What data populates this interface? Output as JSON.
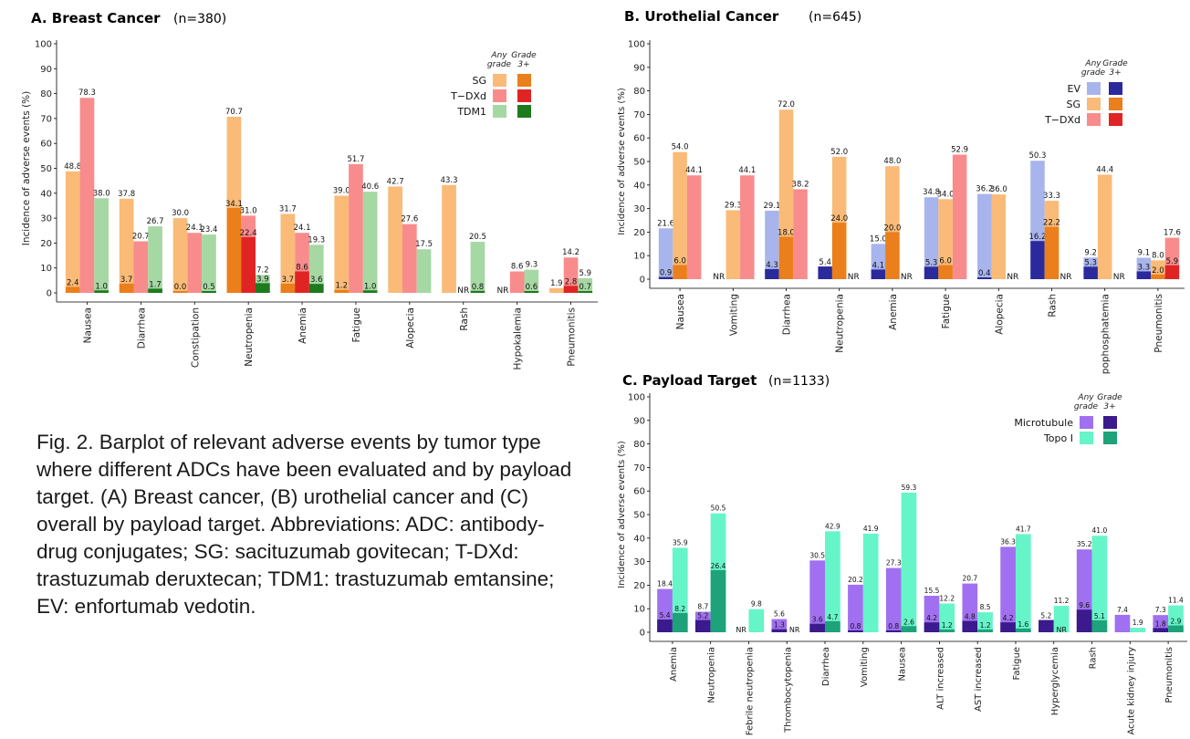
{
  "caption": "Fig. 2. Barplot of relevant adverse events by tumor type where different ADCs have been evaluated and by payload target. (A) Breast cancer, (B) urothelial cancer and (C) overall by payload target. Abbreviations: ADC: antibody-drug conjugates; SG: sacituzumab govitecan; T-DXd: trastuzumab deruxtecan; TDM1: trastuzumab emtansine; EV: enfortumab vedotin.",
  "legend_headers": {
    "any": [
      "Any",
      "grade"
    ],
    "g3": [
      "Grade",
      "3+"
    ]
  },
  "na_label": "NR",
  "chart_data": [
    {
      "type": "bar",
      "title": "A. Breast Cancer",
      "subtitle": "(n=380)",
      "ylabel": "Incidence of adverse events (%)",
      "ylim": [
        0,
        100
      ],
      "yticks": [
        0,
        10,
        20,
        30,
        40,
        50,
        60,
        70,
        80,
        90,
        100
      ],
      "categories": [
        "Nausea",
        "Diarrhea",
        "Constipation",
        "Neutropenia",
        "Anemia",
        "Fatigue",
        "Alopecia",
        "Rash",
        "Hypokalemia",
        "Pneumonitis"
      ],
      "series": [
        {
          "name": "SG",
          "any_color": "#f9bb77",
          "g3_color": "#ea7f1b",
          "any": [
            48.8,
            37.8,
            30.0,
            70.7,
            31.7,
            39.0,
            42.7,
            43.3,
            null,
            1.9
          ],
          "g3": [
            2.4,
            3.7,
            0.0,
            34.1,
            3.7,
            1.2,
            null,
            null,
            null,
            null
          ]
        },
        {
          "name": "T−DXd",
          "any_color": "#f88c8c",
          "g3_color": "#e02424",
          "any": [
            78.3,
            20.7,
            24.1,
            31.0,
            24.1,
            51.7,
            27.6,
            null,
            8.6,
            14.2
          ],
          "g3": [
            null,
            null,
            null,
            22.4,
            8.6,
            null,
            null,
            null,
            null,
            2.8
          ]
        },
        {
          "name": "TDM1",
          "any_color": "#a6d8a4",
          "g3_color": "#1d7a1d",
          "any": [
            38.0,
            26.7,
            23.4,
            7.2,
            19.3,
            40.6,
            17.5,
            20.5,
            9.3,
            5.9
          ],
          "g3": [
            1.0,
            1.7,
            0.5,
            3.9,
            3.6,
            1.0,
            null,
            0.8,
            0.6,
            0.7
          ]
        }
      ],
      "nr": [
        [
          7,
          1
        ],
        [
          8,
          0
        ]
      ]
    },
    {
      "type": "bar",
      "title": "B. Urothelial Cancer",
      "subtitle": "(n=645)",
      "ylabel": "Incidence of adverse events (%)",
      "ylim": [
        0,
        100
      ],
      "yticks": [
        0,
        10,
        20,
        30,
        40,
        50,
        60,
        70,
        80,
        90,
        100
      ],
      "categories": [
        "Nausea",
        "Vomiting",
        "Diarrhea",
        "Neutropenia",
        "Anemia",
        "Fatigue",
        "Alopecia",
        "Rash",
        "Hypophosphatemia",
        "Pneumonitis"
      ],
      "series": [
        {
          "name": "EV",
          "any_color": "#a8b4ec",
          "g3_color": "#2a2a9c",
          "any": [
            21.6,
            null,
            29.1,
            null,
            15.0,
            34.8,
            36.2,
            50.3,
            9.2,
            9.1
          ],
          "g3": [
            0.9,
            null,
            4.3,
            5.4,
            4.1,
            5.3,
            0.4,
            16.2,
            5.3,
            3.3
          ]
        },
        {
          "name": "SG",
          "any_color": "#f9bb77",
          "g3_color": "#ea7f1b",
          "any": [
            54.0,
            29.3,
            72.0,
            52.0,
            48.0,
            34.0,
            36.0,
            33.3,
            44.4,
            8.0
          ],
          "g3": [
            6.0,
            null,
            18.0,
            24.0,
            20.0,
            6.0,
            null,
            22.2,
            null,
            2.0
          ]
        },
        {
          "name": "T−DXd",
          "any_color": "#f88c8c",
          "g3_color": "#e02424",
          "any": [
            44.1,
            44.1,
            38.2,
            null,
            null,
            52.9,
            null,
            null,
            null,
            17.6
          ],
          "g3": [
            null,
            null,
            null,
            null,
            null,
            null,
            null,
            null,
            null,
            5.9
          ]
        }
      ],
      "nr": [
        [
          1,
          0
        ],
        [
          3,
          2
        ],
        [
          4,
          2
        ],
        [
          6,
          2
        ],
        [
          7,
          2
        ],
        [
          8,
          2
        ]
      ]
    },
    {
      "type": "bar",
      "title": "C. Payload Target",
      "subtitle": "(n=1133)",
      "ylabel": "Incidence of adverse events (%)",
      "ylim": [
        0,
        100
      ],
      "yticks": [
        0,
        10,
        20,
        30,
        40,
        50,
        60,
        70,
        80,
        90,
        100
      ],
      "categories": [
        "Anemia",
        "Neutropenia",
        "Febrile neutropenia",
        "Thrombocytopenia",
        "Diarrhea",
        "Vomiting",
        "Nausea",
        "ALT increased",
        "AST increased",
        "Fatigue",
        "Hyperglycemia",
        "Rash",
        "Acute kidney  injury",
        "Pneumonitis"
      ],
      "series": [
        {
          "name": "Microtubule",
          "any_color": "#a070f0",
          "g3_color": "#3a1a8c",
          "any": [
            18.4,
            8.7,
            null,
            5.6,
            30.5,
            20.2,
            27.3,
            15.5,
            20.7,
            36.3,
            null,
            35.2,
            7.4,
            7.3
          ],
          "g3": [
            5.4,
            5.2,
            null,
            1.3,
            3.6,
            0.8,
            0.8,
            4.2,
            4.8,
            4.2,
            5.2,
            9.6,
            null,
            1.8
          ]
        },
        {
          "name": "Topo I",
          "any_color": "#66f5c8",
          "g3_color": "#1ea27a",
          "any": [
            35.9,
            50.5,
            9.8,
            null,
            42.9,
            41.9,
            59.3,
            12.2,
            8.5,
            41.7,
            11.2,
            41.0,
            1.9,
            11.4
          ],
          "g3": [
            8.2,
            26.4,
            null,
            null,
            4.7,
            null,
            2.6,
            1.2,
            1.2,
            1.6,
            null,
            5.1,
            null,
            2.9
          ]
        }
      ],
      "nr": [
        [
          2,
          0
        ],
        [
          3,
          1
        ],
        [
          10,
          1
        ]
      ]
    }
  ]
}
